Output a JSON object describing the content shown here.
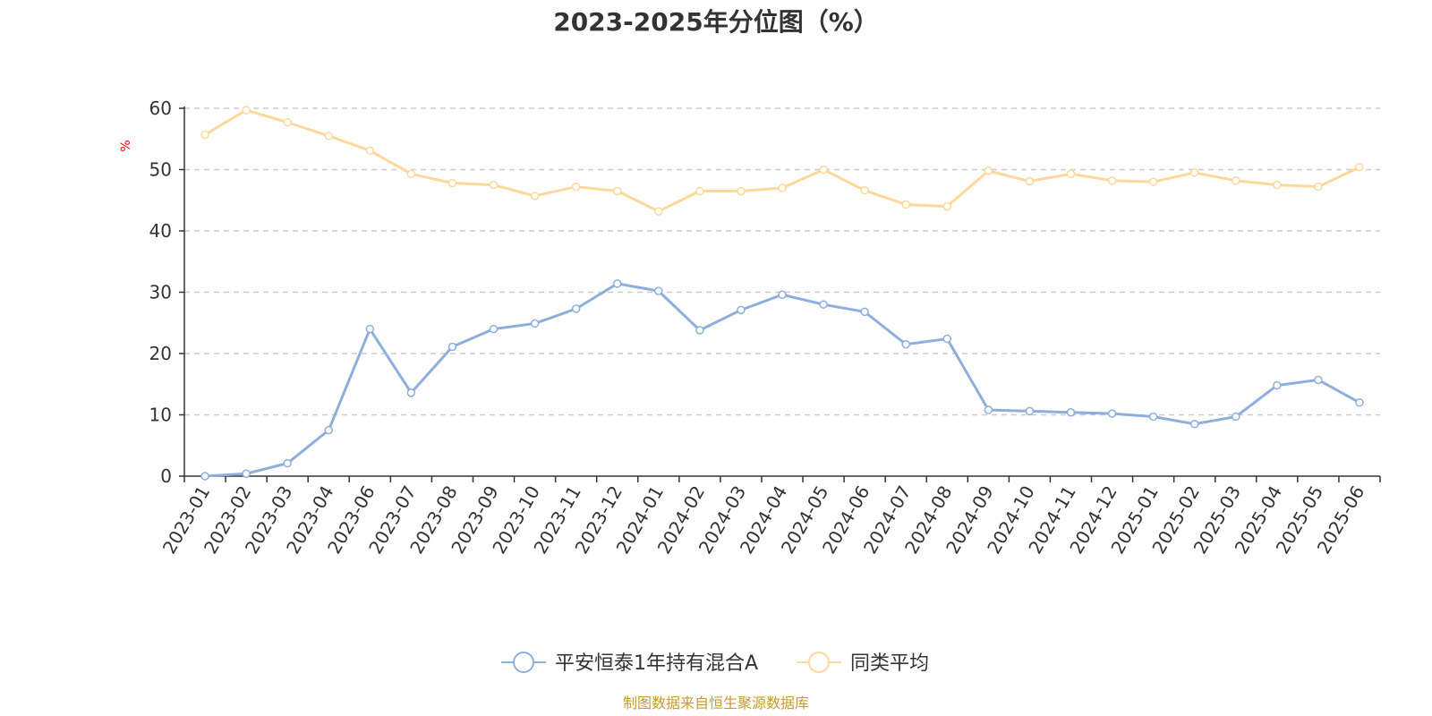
{
  "chart_data": {
    "type": "line",
    "title": "2023-2025年分位图（%）",
    "ylabel": "%",
    "ylim": [
      0,
      60
    ],
    "yticks": [
      0,
      10,
      20,
      30,
      40,
      50,
      60
    ],
    "grid": true,
    "legend_position": "bottom-center",
    "categories": [
      "2023-01",
      "2023-02",
      "2023-03",
      "2023-04",
      "2023-06",
      "2023-07",
      "2023-08",
      "2023-09",
      "2023-10",
      "2023-11",
      "2023-12",
      "2024-01",
      "2024-02",
      "2024-03",
      "2024-04",
      "2024-05",
      "2024-06",
      "2024-07",
      "2024-08",
      "2024-09",
      "2024-10",
      "2024-11",
      "2024-12",
      "2025-01",
      "2025-02",
      "2025-03",
      "2025-04",
      "2025-05",
      "2025-06"
    ],
    "series": [
      {
        "name": "平安恒泰1年持有混合A",
        "color": "#8eaedb",
        "values": [
          0.0,
          0.4,
          2.1,
          7.5,
          24.0,
          13.6,
          21.1,
          24.0,
          24.9,
          27.3,
          31.4,
          30.2,
          23.8,
          27.1,
          29.6,
          28.0,
          26.8,
          21.5,
          22.4,
          10.8,
          10.6,
          10.4,
          10.2,
          9.7,
          8.5,
          9.7,
          14.8,
          15.7,
          12.0
        ]
      },
      {
        "name": "同类平均",
        "color": "#fcd89b",
        "values": [
          55.7,
          59.7,
          57.7,
          55.5,
          53.1,
          49.3,
          47.8,
          47.5,
          45.7,
          47.2,
          46.5,
          43.2,
          46.5,
          46.5,
          47.0,
          50.0,
          46.6,
          44.3,
          44.0,
          49.8,
          48.1,
          49.3,
          48.2,
          48.0,
          49.5,
          48.2,
          47.5,
          47.2,
          50.4
        ]
      }
    ]
  },
  "source": {
    "text": "制图数据来自恒生聚源数据库",
    "color": "#c99a2e"
  },
  "colors": {
    "unit_label": "#ff0000",
    "grid": "#cccccc",
    "axis": "#333333"
  }
}
